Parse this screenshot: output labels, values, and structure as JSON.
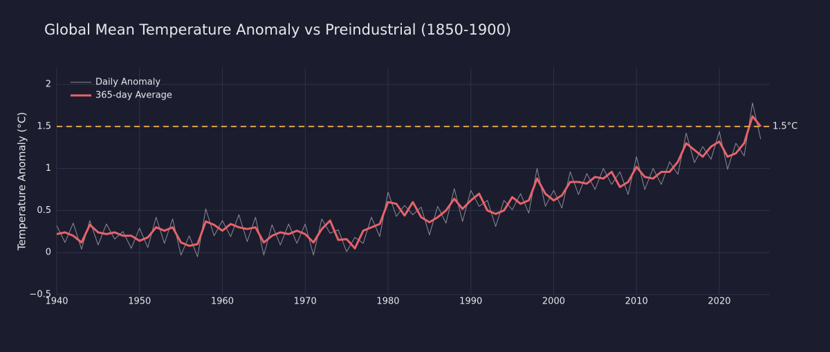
{
  "chart_data": {
    "type": "line",
    "title": "Global Mean Temperature Anomaly vs Preindustrial (1850-1900)",
    "y_label": "Temperature Anomaly (°C)",
    "x": [
      1940,
      1941,
      1942,
      1943,
      1944,
      1945,
      1946,
      1947,
      1948,
      1949,
      1950,
      1951,
      1952,
      1953,
      1954,
      1955,
      1956,
      1957,
      1958,
      1959,
      1960,
      1961,
      1962,
      1963,
      1964,
      1965,
      1966,
      1967,
      1968,
      1969,
      1970,
      1971,
      1972,
      1973,
      1974,
      1975,
      1976,
      1977,
      1978,
      1979,
      1980,
      1981,
      1982,
      1983,
      1984,
      1985,
      1986,
      1987,
      1988,
      1989,
      1990,
      1991,
      1992,
      1993,
      1994,
      1995,
      1996,
      1997,
      1998,
      1999,
      2000,
      2001,
      2002,
      2003,
      2004,
      2005,
      2006,
      2007,
      2008,
      2009,
      2010,
      2011,
      2012,
      2013,
      2014,
      2015,
      2016,
      2017,
      2018,
      2019,
      2020,
      2021,
      2022,
      2023,
      2024,
      2025
    ],
    "series": [
      {
        "name": "Daily Anomaly",
        "color": "#8e8e96",
        "width": 1,
        "values": [
          0.32,
          0.12,
          0.35,
          0.04,
          0.38,
          0.09,
          0.34,
          0.16,
          0.25,
          0.05,
          0.29,
          0.06,
          0.42,
          0.11,
          0.4,
          -0.03,
          0.2,
          -0.05,
          0.52,
          0.2,
          0.38,
          0.19,
          0.45,
          0.13,
          0.42,
          -0.03,
          0.33,
          0.09,
          0.34,
          0.11,
          0.34,
          -0.03,
          0.4,
          0.23,
          0.27,
          0.01,
          0.18,
          0.11,
          0.42,
          0.19,
          0.72,
          0.43,
          0.56,
          0.45,
          0.54,
          0.21,
          0.55,
          0.35,
          0.76,
          0.37,
          0.74,
          0.55,
          0.62,
          0.31,
          0.62,
          0.51,
          0.7,
          0.47,
          1.0,
          0.55,
          0.74,
          0.53,
          0.96,
          0.69,
          0.94,
          0.75,
          1.0,
          0.81,
          0.96,
          0.69,
          1.14,
          0.75,
          1.0,
          0.81,
          1.08,
          0.93,
          1.42,
          1.07,
          1.26,
          1.11,
          1.44,
          0.99,
          1.3,
          1.15,
          1.78,
          1.35
        ]
      },
      {
        "name": "365-day Average",
        "color": "#e8636a",
        "width": 3,
        "values": [
          0.22,
          0.24,
          0.2,
          0.12,
          0.33,
          0.24,
          0.22,
          0.24,
          0.2,
          0.2,
          0.14,
          0.18,
          0.3,
          0.26,
          0.3,
          0.12,
          0.08,
          0.1,
          0.37,
          0.33,
          0.26,
          0.34,
          0.3,
          0.28,
          0.3,
          0.12,
          0.2,
          0.24,
          0.22,
          0.26,
          0.22,
          0.12,
          0.28,
          0.38,
          0.15,
          0.16,
          0.05,
          0.26,
          0.3,
          0.34,
          0.6,
          0.58,
          0.44,
          0.6,
          0.42,
          0.36,
          0.42,
          0.5,
          0.64,
          0.52,
          0.62,
          0.7,
          0.5,
          0.46,
          0.5,
          0.66,
          0.58,
          0.62,
          0.88,
          0.7,
          0.62,
          0.68,
          0.84,
          0.84,
          0.82,
          0.9,
          0.88,
          0.96,
          0.78,
          0.84,
          1.02,
          0.9,
          0.88,
          0.96,
          0.96,
          1.08,
          1.3,
          1.22,
          1.14,
          1.26,
          1.32,
          1.14,
          1.18,
          1.3,
          1.62,
          1.5
        ]
      }
    ],
    "reference_lines": [
      {
        "value": 1.5,
        "label": "1.5°C",
        "color": "#e0a448"
      }
    ],
    "xlim": [
      1940,
      2026.1
    ],
    "xticks": [
      1940,
      1950,
      1960,
      1970,
      1980,
      1990,
      2000,
      2010,
      2020
    ],
    "ylim": [
      -0.5,
      2.2
    ],
    "yticks": [
      {
        "value": -0.5,
        "label": "−0.5"
      },
      0,
      0.5,
      1,
      1.5,
      2
    ],
    "grid": true,
    "legend": "top-left"
  }
}
